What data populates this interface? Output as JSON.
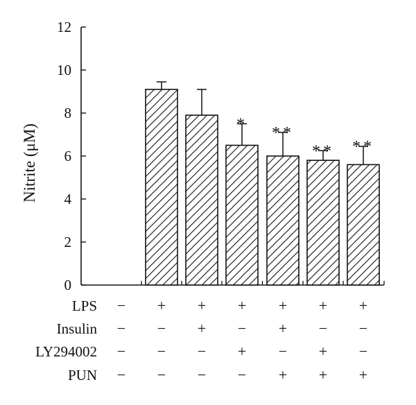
{
  "chart_data": {
    "type": "bar",
    "ylabel": "Nitrite (μM)",
    "ylim": [
      0,
      12
    ],
    "yticks": [
      "0",
      "2",
      "4",
      "6",
      "8",
      "10",
      "12"
    ],
    "fill": "hatched",
    "colors": {
      "bar_stroke": "#111111",
      "hatch": "#111111",
      "background": "#ffffff"
    },
    "values": [
      0,
      9.1,
      7.9,
      6.5,
      6.0,
      5.8,
      5.6
    ],
    "error": [
      0,
      0.35,
      1.2,
      1.0,
      1.1,
      0.45,
      0.85
    ],
    "significance": [
      "",
      "",
      "",
      "*",
      "**",
      "**",
      "**"
    ],
    "treatments": [
      {
        "label": "LPS",
        "signs": [
          "−",
          "+",
          "+",
          "+",
          "+",
          "+",
          "+"
        ]
      },
      {
        "label": "Insulin",
        "signs": [
          "−",
          "−",
          "+",
          "−",
          "+",
          "−",
          "−"
        ]
      },
      {
        "label": "LY294002",
        "signs": [
          "−",
          "−",
          "−",
          "+",
          "−",
          "+",
          "−"
        ]
      },
      {
        "label": "PUN",
        "signs": [
          "−",
          "−",
          "−",
          "−",
          "+",
          "+",
          "+"
        ]
      }
    ]
  }
}
